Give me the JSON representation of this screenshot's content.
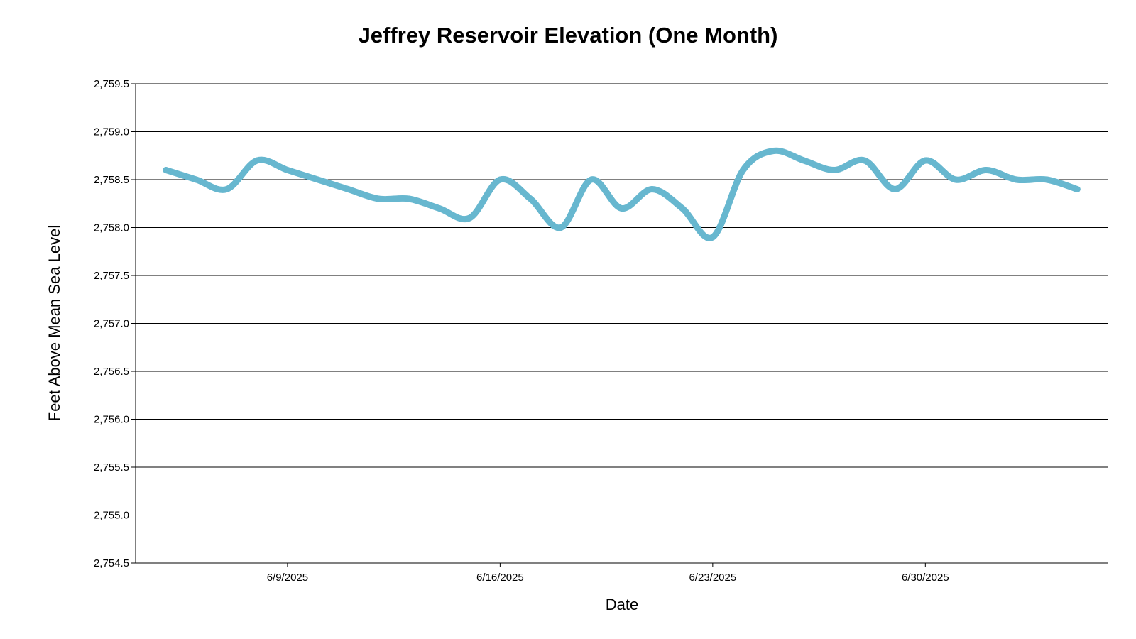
{
  "chart_data": {
    "type": "line",
    "title": "Jeffrey Reservoir Elevation (One Month)",
    "xlabel": "Date",
    "ylabel": "Feet Above Mean Sea Level",
    "ylim": [
      2754.5,
      2759.5
    ],
    "yticks": [
      "2,754.5",
      "2,755.0",
      "2,755.5",
      "2,756.0",
      "2,756.5",
      "2,757.0",
      "2,757.5",
      "2,758.0",
      "2,758.5",
      "2,759.0",
      "2,759.5"
    ],
    "ytick_values": [
      2754.5,
      2755.0,
      2755.5,
      2756.0,
      2756.5,
      2757.0,
      2757.5,
      2758.0,
      2758.5,
      2759.0,
      2759.5
    ],
    "xlim": [
      "2025-06-04",
      "2025-07-06"
    ],
    "xticks": [
      {
        "date": "2025-06-09",
        "label": "6/9/2025"
      },
      {
        "date": "2025-06-16",
        "label": "6/16/2025"
      },
      {
        "date": "2025-06-23",
        "label": "6/23/2025"
      },
      {
        "date": "2025-06-30",
        "label": "6/30/2025"
      }
    ],
    "grid": true,
    "line_color": "#67b7cf",
    "series": [
      {
        "x": [
          "2025-06-05",
          "2025-06-06",
          "2025-06-07",
          "2025-06-08",
          "2025-06-09",
          "2025-06-10",
          "2025-06-11",
          "2025-06-12",
          "2025-06-13",
          "2025-06-14",
          "2025-06-15",
          "2025-06-16",
          "2025-06-17",
          "2025-06-18",
          "2025-06-19",
          "2025-06-20",
          "2025-06-21",
          "2025-06-22",
          "2025-06-23",
          "2025-06-24",
          "2025-06-25",
          "2025-06-26",
          "2025-06-27",
          "2025-06-28",
          "2025-06-29",
          "2025-06-30",
          "2025-07-01",
          "2025-07-02",
          "2025-07-03",
          "2025-07-04",
          "2025-07-05"
        ],
        "values": [
          2758.6,
          2758.5,
          2758.4,
          2758.7,
          2758.6,
          2758.5,
          2758.4,
          2758.3,
          2758.3,
          2758.2,
          2758.1,
          2758.5,
          2758.3,
          2758.0,
          2758.5,
          2758.2,
          2758.4,
          2758.2,
          2757.9,
          2758.6,
          2758.8,
          2758.7,
          2758.6,
          2758.7,
          2758.4,
          2758.7,
          2758.5,
          2758.6,
          2758.5,
          2758.5,
          2758.4
        ]
      }
    ]
  }
}
